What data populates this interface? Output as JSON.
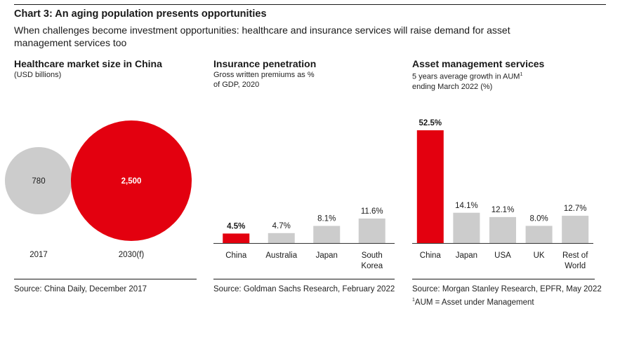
{
  "header": {
    "chart_title": "Chart 3: An aging population presents opportunities",
    "intro": "When challenges become investment opportunities: healthcare and insurance services will raise demand for asset management services too"
  },
  "colors": {
    "highlight": "#e3000f",
    "neutral": "#cccccc",
    "text": "#1a1a1a"
  },
  "panels": [
    {
      "title": "Healthcare market size in China",
      "subtitle": "(USD billions)",
      "source": "Source: China Daily, December 2017"
    },
    {
      "title": "Insurance penetration",
      "subtitle_line1": "Gross written premiums as %",
      "subtitle_line2": "of GDP, 2020",
      "source": "Source: Goldman Sachs Research, February 2022"
    },
    {
      "title": "Asset management services",
      "subtitle_line1": "5 years average growth in AUM",
      "subtitle_sup": "1",
      "subtitle_line2": "ending March 2022 (%)",
      "source": "Source: Morgan Stanley Research, EPFR, May 2022",
      "footnote_sup": "1",
      "footnote": "AUM = Asset under Management"
    }
  ],
  "chart_data": [
    {
      "type": "bubble",
      "title": "Healthcare market size in China",
      "unit": "USD billions",
      "categories": [
        "2017",
        "2030(f)"
      ],
      "values": [
        780,
        2500
      ],
      "labels": [
        "780",
        "2,500"
      ],
      "highlight": [
        false,
        true
      ]
    },
    {
      "type": "bar",
      "title": "Insurance penetration",
      "unit": "% of GDP",
      "categories": [
        [
          "China"
        ],
        [
          "Australia"
        ],
        [
          "Japan"
        ],
        [
          "South",
          "Korea"
        ]
      ],
      "values": [
        4.5,
        4.7,
        8.1,
        11.6
      ],
      "labels": [
        "4.5%",
        "4.7%",
        "8.1%",
        "11.6%"
      ],
      "highlight": [
        true,
        false,
        false,
        false
      ],
      "ylim": [
        0,
        11.6
      ]
    },
    {
      "type": "bar",
      "title": "Asset management services",
      "unit": "%",
      "categories": [
        [
          "China"
        ],
        [
          "Japan"
        ],
        [
          "USA"
        ],
        [
          "UK"
        ],
        [
          "Rest of",
          "World"
        ]
      ],
      "values": [
        52.5,
        14.1,
        12.1,
        8.0,
        12.7
      ],
      "labels": [
        "52.5%",
        "14.1%",
        "12.1%",
        "8.0%",
        "12.7%"
      ],
      "highlight": [
        true,
        false,
        false,
        false,
        false
      ],
      "ylim": [
        0,
        52.5
      ]
    }
  ]
}
